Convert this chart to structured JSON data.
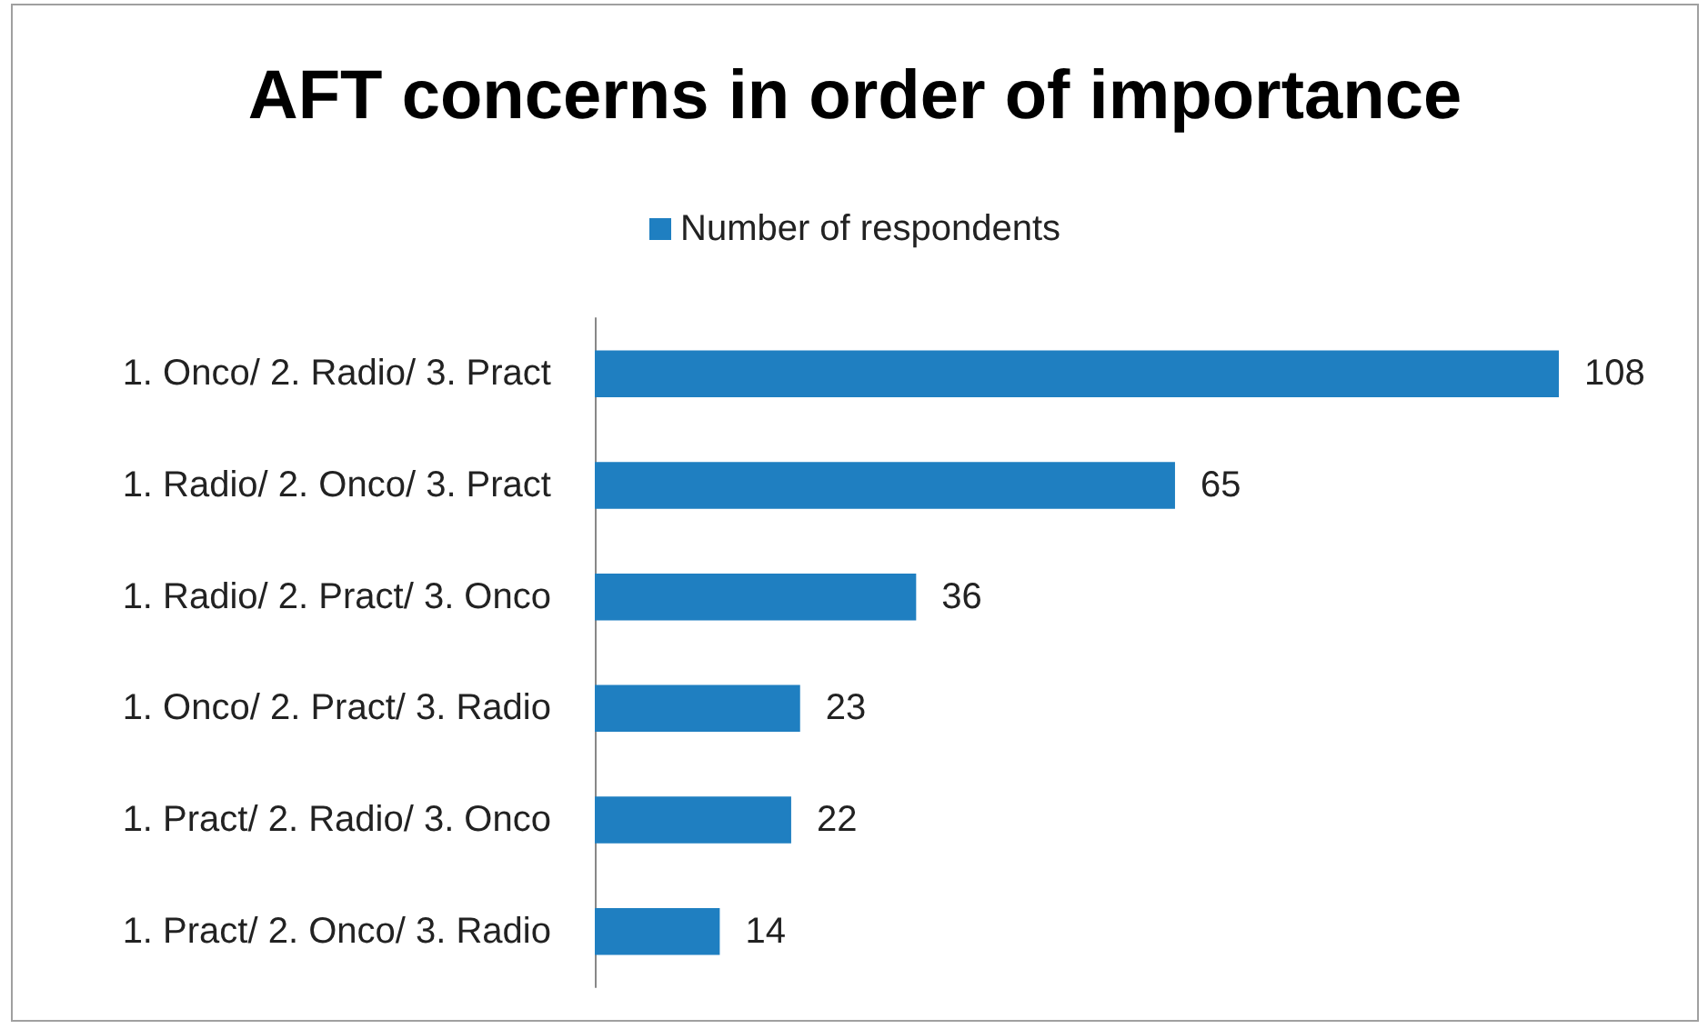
{
  "chart_data": {
    "type": "bar",
    "orientation": "horizontal",
    "title": "AFT concerns in order of importance",
    "categories": [
      "1. Onco/ 2. Radio/ 3. Pract",
      "1. Radio/ 2. Onco/ 3. Pract",
      "1. Radio/ 2. Pract/ 3. Onco",
      "1. Onco/ 2. Pract/ 3. Radio",
      "1. Pract/ 2. Radio/ 3. Onco",
      "1. Pract/ 2. Onco/ 3. Radio"
    ],
    "series": [
      {
        "name": "Number of respondents",
        "color": "#1f7fc1",
        "values": [
          108,
          65,
          36,
          23,
          22,
          14
        ]
      }
    ],
    "data_labels": true,
    "legend": "top"
  }
}
